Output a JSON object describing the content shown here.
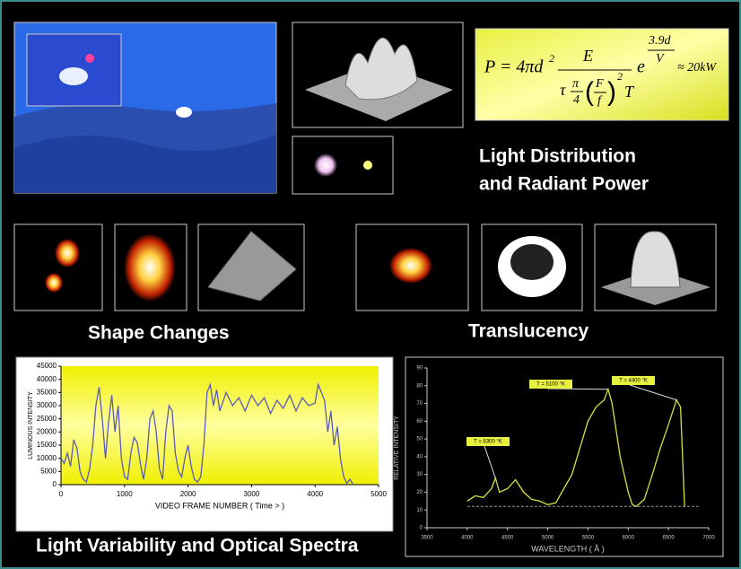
{
  "formula": {
    "lhs": "P = 4πd",
    "exp": "2",
    "num": "E",
    "tau": "τ",
    "pi": "π",
    "four": "4",
    "F": "F",
    "f": "f",
    "sq": "2",
    "T": "T",
    "e": "e",
    "enum": "3.9d",
    "eden": "V",
    "result": "≈ 20kW"
  },
  "labels": {
    "light_1": "Light Distribution",
    "light_2": "and Radiant Power",
    "shape": "Shape Changes",
    "translucency": "Translucency",
    "footer": "Light Variability and Optical Spectra"
  },
  "chart_data": [
    {
      "type": "line",
      "xlabel": "VIDEO FRAME NUMBER ( Time > )",
      "ylabel": "LUMINOUS INTENSITY",
      "xlim": [
        0,
        5000
      ],
      "xticks": [
        0,
        1000,
        2000,
        3000,
        4000,
        5000
      ],
      "ylim": [
        0,
        45000
      ],
      "yticks": [
        0,
        5000,
        10000,
        15000,
        20000,
        25000,
        30000,
        35000,
        40000,
        45000
      ],
      "series": [
        {
          "color": "#5a5ab8",
          "x": [
            0,
            50,
            100,
            150,
            200,
            250,
            300,
            350,
            400,
            450,
            500,
            550,
            600,
            650,
            700,
            750,
            800,
            850,
            900,
            950,
            1000,
            1050,
            1100,
            1150,
            1200,
            1250,
            1300,
            1350,
            1400,
            1450,
            1500,
            1550,
            1600,
            1650,
            1700,
            1750,
            1800,
            1850,
            1900,
            1950,
            2000,
            2050,
            2100,
            2150,
            2200,
            2250,
            2300,
            2350,
            2400,
            2450,
            2500,
            2600,
            2700,
            2800,
            2900,
            3000,
            3100,
            3200,
            3300,
            3400,
            3500,
            3600,
            3700,
            3800,
            3900,
            4000,
            4050,
            4100,
            4150,
            4200,
            4250,
            4300,
            4350,
            4400,
            4450,
            4500,
            4550,
            4600
          ],
          "values": [
            10000,
            8000,
            12000,
            7000,
            17000,
            14000,
            5000,
            2000,
            1000,
            6000,
            15000,
            30000,
            37000,
            25000,
            10000,
            24000,
            34000,
            20000,
            30000,
            10000,
            3000,
            2000,
            12000,
            18000,
            16000,
            8000,
            2000,
            10000,
            25000,
            28000,
            20000,
            6000,
            2000,
            20000,
            30000,
            28000,
            12000,
            5000,
            3000,
            10000,
            15000,
            7000,
            2000,
            1000,
            3000,
            15000,
            35000,
            38000,
            30000,
            36000,
            28000,
            35000,
            30000,
            33000,
            28000,
            34000,
            30000,
            33000,
            27000,
            32000,
            29000,
            34000,
            28000,
            33000,
            30000,
            31000,
            38000,
            35000,
            32000,
            20000,
            28000,
            15000,
            22000,
            10000,
            3000,
            500,
            2000,
            0
          ]
        }
      ]
    },
    {
      "type": "line",
      "xlabel": "WAVELENGTH ( Å )",
      "ylabel": "RELATIVE INTENSITY",
      "xlim": [
        3500,
        7000
      ],
      "xticks": [
        3500,
        4000,
        4500,
        5000,
        5500,
        6000,
        6500,
        7000
      ],
      "ylim": [
        0,
        90
      ],
      "yticks": [
        0,
        10,
        20,
        30,
        40,
        50,
        60,
        70,
        80,
        90
      ],
      "annotations": [
        "T = 6300 °K",
        "T = 5100 °K",
        "T = 4400 °K"
      ],
      "series": [
        {
          "color": "#d8e040",
          "x": [
            4000,
            4100,
            4200,
            4300,
            4350,
            4400,
            4500,
            4600,
            4700,
            4800,
            4900,
            5000,
            5100,
            5200,
            5300,
            5400,
            5500,
            5600,
            5700,
            5750,
            5800,
            5900,
            6000,
            6050,
            6100,
            6200,
            6300,
            6400,
            6500,
            6550,
            6600,
            6650,
            6700
          ],
          "values": [
            15,
            18,
            17,
            22,
            28,
            20,
            22,
            27,
            20,
            16,
            15,
            13,
            14,
            22,
            30,
            45,
            60,
            68,
            72,
            78,
            70,
            40,
            20,
            13,
            12,
            16,
            30,
            45,
            58,
            65,
            72,
            68,
            12
          ]
        },
        {
          "color": "#9a9a9a",
          "x": [
            4000,
            6900
          ],
          "values": [
            12,
            12
          ]
        }
      ]
    }
  ]
}
